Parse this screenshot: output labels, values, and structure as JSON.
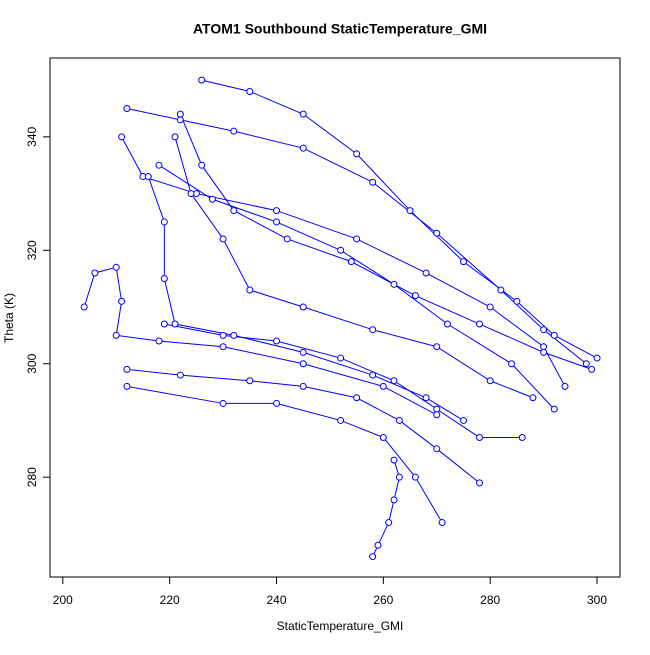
{
  "chart_data": {
    "type": "line",
    "markers": true,
    "color": "#0000ff",
    "title": "ATOM1 Southbound StaticTemperature_GMI",
    "x_label": "StaticTemperature_GMI",
    "y_label": "Theta (K)",
    "xlim": [
      197.6,
      304.3
    ],
    "ylim": [
      262.4,
      353.9
    ],
    "xticks": [
      200,
      220,
      240,
      260,
      280,
      300
    ],
    "yticks": [
      280,
      300,
      320,
      340
    ],
    "x": [
      226,
      235,
      245,
      255,
      265,
      275,
      285,
      292,
      300,
      null,
      212,
      222,
      232,
      245,
      258,
      270,
      282,
      290,
      298,
      null,
      211,
      215,
      225,
      240,
      255,
      268,
      280,
      290,
      294,
      null,
      218,
      228,
      240,
      252,
      262,
      272,
      284,
      292,
      null,
      219,
      230,
      240,
      252,
      262,
      270,
      278,
      286,
      null,
      212,
      222,
      235,
      245,
      255,
      263,
      270,
      278,
      null,
      212,
      230,
      240,
      252,
      260,
      266,
      271,
      null,
      204,
      206,
      210,
      211,
      210,
      218,
      230,
      245,
      260,
      270,
      null,
      258,
      259,
      261,
      262,
      263,
      262,
      null,
      221,
      224,
      230,
      235,
      245,
      258,
      270,
      280,
      288,
      null,
      222,
      226,
      232,
      242,
      254,
      266,
      278,
      290,
      299,
      null,
      216,
      219,
      219,
      221,
      232,
      245,
      258,
      268,
      275
    ],
    "values": [
      350,
      348,
      344,
      337,
      327,
      318,
      311,
      305,
      301,
      null,
      345,
      343,
      341,
      338,
      332,
      323,
      313,
      306,
      300,
      null,
      340,
      333,
      330,
      327,
      322,
      316,
      310,
      303,
      296,
      null,
      335,
      329,
      325,
      320,
      314,
      307,
      300,
      292,
      null,
      307,
      305,
      304,
      301,
      297,
      292,
      287,
      287,
      null,
      299,
      298,
      297,
      296,
      294,
      290,
      285,
      279,
      null,
      296,
      293,
      293,
      290,
      287,
      280,
      272,
      null,
      310,
      316,
      317,
      311,
      305,
      304,
      303,
      300,
      296,
      291,
      null,
      266,
      268,
      272,
      276,
      280,
      283,
      null,
      340,
      330,
      322,
      313,
      310,
      306,
      303,
      297,
      294,
      null,
      344,
      335,
      327,
      322,
      318,
      312,
      307,
      302,
      299,
      null,
      333,
      325,
      315,
      307,
      305,
      302,
      298,
      294,
      290
    ]
  }
}
